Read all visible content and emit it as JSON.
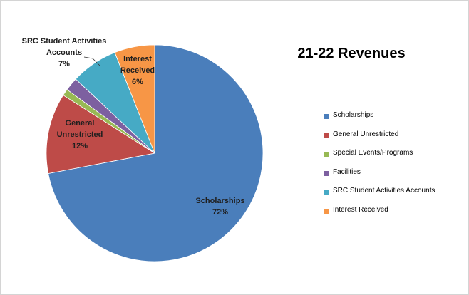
{
  "chart_data": {
    "type": "pie",
    "title": "21-22 Revenues",
    "categories": [
      "Scholarships",
      "General Unrestricted",
      "Special Events/Programs",
      "Facilities",
      "SRC Student Activities Accounts",
      "Interest Received"
    ],
    "values": [
      72,
      12,
      1,
      2,
      7,
      6
    ],
    "value_labels": [
      "72%",
      "12%",
      null,
      null,
      "7%",
      "6%"
    ],
    "colors": [
      "#4a7ebb",
      "#be4b48",
      "#98b954",
      "#7d60a0",
      "#46aac5",
      "#f79646"
    ],
    "legend": "right"
  }
}
